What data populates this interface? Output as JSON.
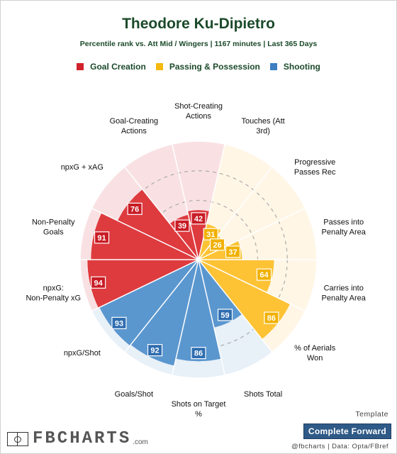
{
  "header": {
    "title": "Theodore Ku-Dipietro",
    "subtitle": "Percentile rank vs. Att Mid / Wingers | 1167 minutes | Last 365 Days"
  },
  "legend": [
    {
      "label": "Goal Creation",
      "color": "#d0222b"
    },
    {
      "label": "Passing & Possession",
      "color": "#f5b90d"
    },
    {
      "label": "Shooting",
      "color": "#3e7fc1"
    }
  ],
  "chart_data": {
    "type": "polar-bar",
    "title": "Theodore Ku-Dipietro",
    "scale": [
      0,
      100
    ],
    "start_category": "Shot-Creating Actions",
    "direction": "clockwise",
    "groups": {
      "Goal Creation": {
        "fill": "#de3b3f",
        "bg": "#f9e1e3",
        "label_bg": "#c81c25"
      },
      "Passing & Possession": {
        "fill": "#fdc335",
        "bg": "#fff6e6",
        "label_bg": "#f1b100"
      },
      "Shooting": {
        "fill": "#5b97cf",
        "bg": "#e8f0f8",
        "label_bg": "#2f6db0"
      }
    },
    "categories": [
      {
        "label": "Shot-Creating Actions",
        "value": 42,
        "group": "Goal Creation"
      },
      {
        "label": "Touches (Att 3rd)",
        "value": 31,
        "group": "Passing & Possession"
      },
      {
        "label": "Progressive Passes Rec",
        "value": 26,
        "group": "Passing & Possession"
      },
      {
        "label": "Passes into Penalty Area",
        "value": 37,
        "group": "Passing & Possession"
      },
      {
        "label": "Carries into Penalty Area",
        "value": 64,
        "group": "Passing & Possession"
      },
      {
        "label": "% of Aerials Won",
        "value": 86,
        "group": "Passing & Possession"
      },
      {
        "label": "Shots Total",
        "value": 59,
        "group": "Shooting"
      },
      {
        "label": "Shots on Target %",
        "value": 86,
        "group": "Shooting"
      },
      {
        "label": "Goals/Shot",
        "value": 92,
        "group": "Shooting"
      },
      {
        "label": "npxG/Shot",
        "value": 93,
        "group": "Shooting"
      },
      {
        "label": "npxG: Non-Penalty xG",
        "value": 94,
        "group": "Goal Creation"
      },
      {
        "label": "Non-Penalty Goals",
        "value": 91,
        "group": "Goal Creation"
      },
      {
        "label": "npxG + xAG",
        "value": 76,
        "group": "Goal Creation"
      },
      {
        "label": "Goal-Creating Actions",
        "value": 39,
        "group": "Goal Creation"
      }
    ]
  },
  "footer": {
    "template_label": "Template",
    "template_value": "Complete Forward",
    "credit": "@fbcharts | Data: Opta/FBref",
    "logo_text": "FBCHARTS",
    "logo_domain": ".com"
  }
}
